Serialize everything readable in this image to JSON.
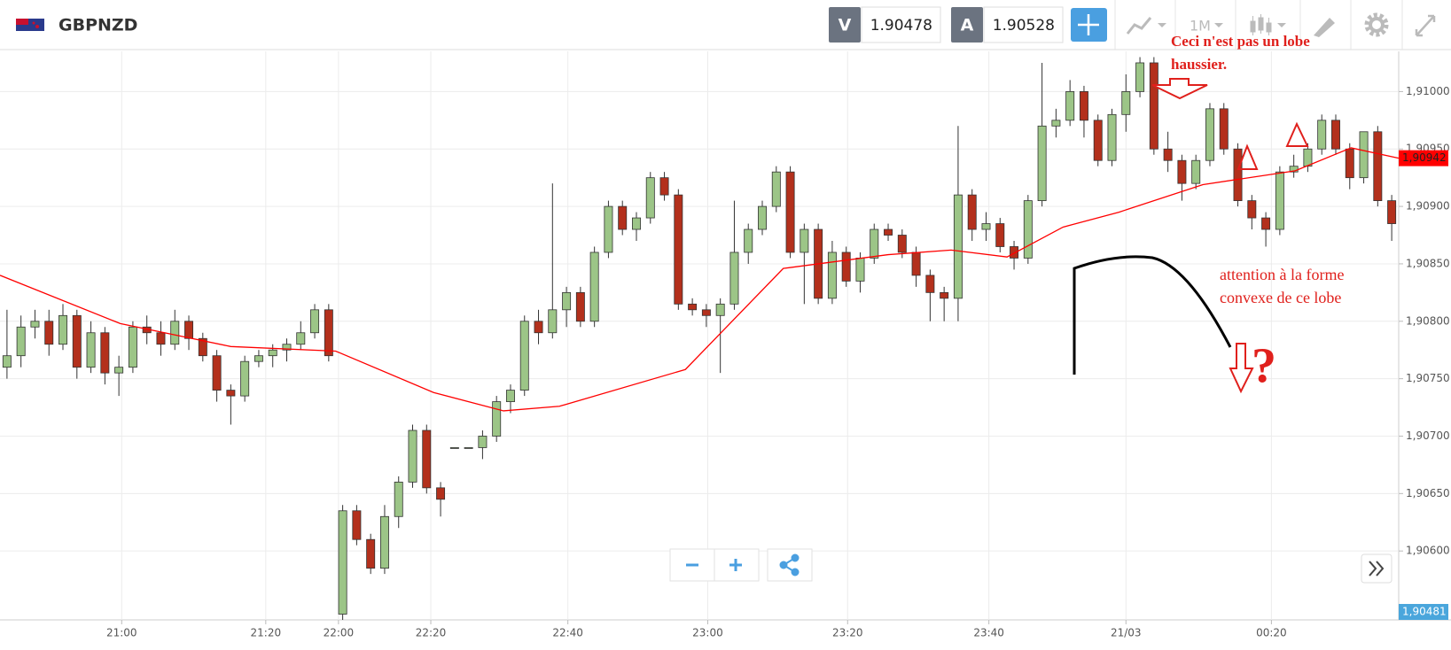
{
  "header": {
    "symbol": "GBPNZD",
    "sell_label": "V",
    "sell_price": "1.90478",
    "buy_label": "A",
    "buy_price": "1.90528",
    "timeframe": "1M"
  },
  "chart_data": {
    "type": "candlestick",
    "up_color": "#9cc587",
    "down_color": "#b3301c",
    "xlim": [
      0,
      100
    ],
    "ylim": [
      1.9054,
      1.91035
    ],
    "xticks": [
      {
        "value": 8.7,
        "label": "21:00"
      },
      {
        "value": 19.0,
        "label": "21:20"
      },
      {
        "value": 24.2,
        "label": "22:00"
      },
      {
        "value": 30.8,
        "label": "22:20"
      },
      {
        "value": 40.6,
        "label": "22:40"
      },
      {
        "value": 50.6,
        "label": "23:00"
      },
      {
        "value": 60.6,
        "label": "23:20"
      },
      {
        "value": 70.7,
        "label": "23:40"
      },
      {
        "value": 80.5,
        "label": "21/03"
      },
      {
        "value": 90.9,
        "label": "00:20"
      }
    ],
    "yticks": [
      {
        "value": 1.906,
        "label": "1,90600"
      },
      {
        "value": 1.9065,
        "label": "1,90650"
      },
      {
        "value": 1.907,
        "label": "1,90700"
      },
      {
        "value": 1.9075,
        "label": "1,90750"
      },
      {
        "value": 1.908,
        "label": "1,90800"
      },
      {
        "value": 1.9085,
        "label": "1,90850"
      },
      {
        "value": 1.909,
        "label": "1,90900"
      },
      {
        "value": 1.9095,
        "label": "1,90950"
      },
      {
        "value": 1.91,
        "label": "1,91000"
      }
    ],
    "grid": true,
    "candles": [
      [
        1.9076,
        1.9081,
        1.9075,
        1.9077
      ],
      [
        1.9077,
        1.90805,
        1.9076,
        1.90795
      ],
      [
        1.90795,
        1.9081,
        1.90785,
        1.908
      ],
      [
        1.908,
        1.9081,
        1.9077,
        1.9078
      ],
      [
        1.9078,
        1.90815,
        1.90775,
        1.90805
      ],
      [
        1.90805,
        1.9081,
        1.9075,
        1.9076
      ],
      [
        1.9076,
        1.908,
        1.90755,
        1.9079
      ],
      [
        1.9079,
        1.90795,
        1.90745,
        1.90755
      ],
      [
        1.90755,
        1.9077,
        1.90735,
        1.9076
      ],
      [
        1.9076,
        1.908,
        1.90755,
        1.90795
      ],
      [
        1.90795,
        1.90805,
        1.9078,
        1.9079
      ],
      [
        1.9079,
        1.908,
        1.9077,
        1.9078
      ],
      [
        1.9078,
        1.9081,
        1.90775,
        1.908
      ],
      [
        1.908,
        1.90805,
        1.90775,
        1.90785
      ],
      [
        1.90785,
        1.9079,
        1.90765,
        1.9077
      ],
      [
        1.9077,
        1.90775,
        1.9073,
        1.9074
      ],
      [
        1.9074,
        1.90745,
        1.9071,
        1.90735
      ],
      [
        1.90735,
        1.9077,
        1.9073,
        1.90765
      ],
      [
        1.90765,
        1.90775,
        1.9076,
        1.9077
      ],
      [
        1.9077,
        1.9078,
        1.9076,
        1.90775
      ],
      [
        1.90775,
        1.90785,
        1.90765,
        1.9078
      ],
      [
        1.9078,
        1.908,
        1.90775,
        1.9079
      ],
      [
        1.9079,
        1.90815,
        1.90785,
        1.9081
      ],
      [
        1.9081,
        1.90815,
        1.90765,
        1.9077
      ],
      [
        1.90545,
        1.9064,
        1.9054,
        1.90635
      ],
      [
        1.90635,
        1.9064,
        1.90605,
        1.9061
      ],
      [
        1.9061,
        1.90615,
        1.9058,
        1.90585
      ],
      [
        1.90585,
        1.9064,
        1.9058,
        1.9063
      ],
      [
        1.9063,
        1.90665,
        1.9062,
        1.9066
      ],
      [
        1.9066,
        1.9071,
        1.90655,
        1.90705
      ],
      [
        1.90705,
        1.9071,
        1.9065,
        1.90655
      ],
      [
        1.90655,
        1.9066,
        1.9063,
        1.90645
      ],
      [
        1.9069,
        1.9069,
        1.9069,
        1.9069
      ],
      [
        1.9069,
        1.9069,
        1.9069,
        1.9069
      ],
      [
        1.9069,
        1.90705,
        1.9068,
        1.907
      ],
      [
        1.907,
        1.90735,
        1.90695,
        1.9073
      ],
      [
        1.9073,
        1.90745,
        1.9072,
        1.9074
      ],
      [
        1.9074,
        1.90805,
        1.90735,
        1.908
      ],
      [
        1.908,
        1.9081,
        1.9078,
        1.9079
      ],
      [
        1.9079,
        1.9092,
        1.90785,
        1.9081
      ],
      [
        1.9081,
        1.9083,
        1.90795,
        1.90825
      ],
      [
        1.90825,
        1.9083,
        1.90795,
        1.908
      ],
      [
        1.908,
        1.90865,
        1.90795,
        1.9086
      ],
      [
        1.9086,
        1.90905,
        1.90855,
        1.909
      ],
      [
        1.909,
        1.90905,
        1.90875,
        1.9088
      ],
      [
        1.9088,
        1.90895,
        1.9087,
        1.9089
      ],
      [
        1.9089,
        1.9093,
        1.90885,
        1.90925
      ],
      [
        1.90925,
        1.9093,
        1.90905,
        1.9091
      ],
      [
        1.9091,
        1.90915,
        1.9081,
        1.90815
      ],
      [
        1.90815,
        1.9082,
        1.90805,
        1.9081
      ],
      [
        1.9081,
        1.90815,
        1.90795,
        1.90805
      ],
      [
        1.90805,
        1.9082,
        1.90755,
        1.90815
      ],
      [
        1.90815,
        1.90905,
        1.9081,
        1.9086
      ],
      [
        1.9086,
        1.90885,
        1.9085,
        1.9088
      ],
      [
        1.9088,
        1.90905,
        1.90875,
        1.909
      ],
      [
        1.909,
        1.90935,
        1.90895,
        1.9093
      ],
      [
        1.9093,
        1.90935,
        1.90855,
        1.9086
      ],
      [
        1.9086,
        1.90885,
        1.90815,
        1.9088
      ],
      [
        1.9088,
        1.90885,
        1.90815,
        1.9082
      ],
      [
        1.9082,
        1.9087,
        1.90815,
        1.9086
      ],
      [
        1.9086,
        1.90865,
        1.9083,
        1.90835
      ],
      [
        1.90835,
        1.9086,
        1.90825,
        1.90855
      ],
      [
        1.90855,
        1.90885,
        1.9085,
        1.9088
      ],
      [
        1.9088,
        1.90885,
        1.9087,
        1.90875
      ],
      [
        1.90875,
        1.9088,
        1.90855,
        1.9086
      ],
      [
        1.9086,
        1.90865,
        1.9083,
        1.9084
      ],
      [
        1.9084,
        1.90845,
        1.908,
        1.90825
      ],
      [
        1.90825,
        1.9083,
        1.908,
        1.9082
      ],
      [
        1.9082,
        1.9097,
        1.908,
        1.9091
      ],
      [
        1.9091,
        1.90915,
        1.9087,
        1.9088
      ],
      [
        1.9088,
        1.90895,
        1.9087,
        1.90885
      ],
      [
        1.90885,
        1.9089,
        1.9086,
        1.90865
      ],
      [
        1.90865,
        1.9087,
        1.90845,
        1.90855
      ],
      [
        1.90855,
        1.9091,
        1.9085,
        1.90905
      ],
      [
        1.90905,
        1.91025,
        1.909,
        1.9097
      ],
      [
        1.9097,
        1.90985,
        1.9096,
        1.90975
      ],
      [
        1.90975,
        1.9101,
        1.9097,
        1.91
      ],
      [
        1.91,
        1.91005,
        1.9096,
        1.90975
      ],
      [
        1.90975,
        1.9098,
        1.90935,
        1.9094
      ],
      [
        1.9094,
        1.90985,
        1.90935,
        1.9098
      ],
      [
        1.9098,
        1.91015,
        1.90965,
        1.91
      ],
      [
        1.91,
        1.9103,
        1.90995,
        1.91025
      ],
      [
        1.91025,
        1.9103,
        1.90945,
        1.9095
      ],
      [
        1.9095,
        1.90965,
        1.9093,
        1.9094
      ],
      [
        1.9094,
        1.90945,
        1.90905,
        1.9092
      ],
      [
        1.9092,
        1.90945,
        1.90915,
        1.9094
      ],
      [
        1.9094,
        1.9099,
        1.90935,
        1.90985
      ],
      [
        1.90985,
        1.9099,
        1.90945,
        1.9095
      ],
      [
        1.9095,
        1.90955,
        1.909,
        1.90905
      ],
      [
        1.90905,
        1.9091,
        1.9088,
        1.9089
      ],
      [
        1.9089,
        1.90895,
        1.90865,
        1.9088
      ],
      [
        1.9088,
        1.90935,
        1.90875,
        1.9093
      ],
      [
        1.9093,
        1.90945,
        1.90925,
        1.90935
      ],
      [
        1.90935,
        1.90955,
        1.9093,
        1.9095
      ],
      [
        1.9095,
        1.9098,
        1.90945,
        1.90975
      ],
      [
        1.90975,
        1.9098,
        1.90945,
        1.9095
      ],
      [
        1.9095,
        1.90955,
        1.90915,
        1.90925
      ],
      [
        1.90925,
        1.90965,
        1.9092,
        1.90965
      ],
      [
        1.90965,
        1.9097,
        1.909,
        1.90905
      ],
      [
        1.90905,
        1.9091,
        1.9087,
        1.90885
      ]
    ],
    "ma": {
      "color": "#ff0000",
      "x": [
        0,
        8.6,
        16.5,
        24,
        31,
        36,
        40,
        49,
        56,
        63.5,
        68,
        72,
        76,
        80,
        86,
        92.6,
        96.6,
        100
      ],
      "values": [
        1.9084,
        1.90798,
        1.90778,
        1.90774,
        1.90738,
        1.90722,
        1.90726,
        1.90758,
        1.90846,
        1.90858,
        1.90862,
        1.90856,
        1.90882,
        1.90895,
        1.90919,
        1.90931,
        1.90951,
        1.90942
      ]
    },
    "price_tags": [
      {
        "value": 1.90942,
        "label": "1,90942",
        "color": "#ff0000"
      },
      {
        "value": 1.90481,
        "label": "1,90481",
        "color": "#4aa6dc"
      }
    ],
    "annotations": [
      {
        "text": [
          "Ceci n'est pas un lobe",
          "haussier."
        ],
        "color": "#e0201c"
      },
      {
        "text": [
          "attention à la forme",
          "convexe de ce lobe"
        ],
        "color": "#e0201c"
      },
      {
        "text": [
          "?"
        ],
        "color": "#e0201c"
      }
    ]
  }
}
